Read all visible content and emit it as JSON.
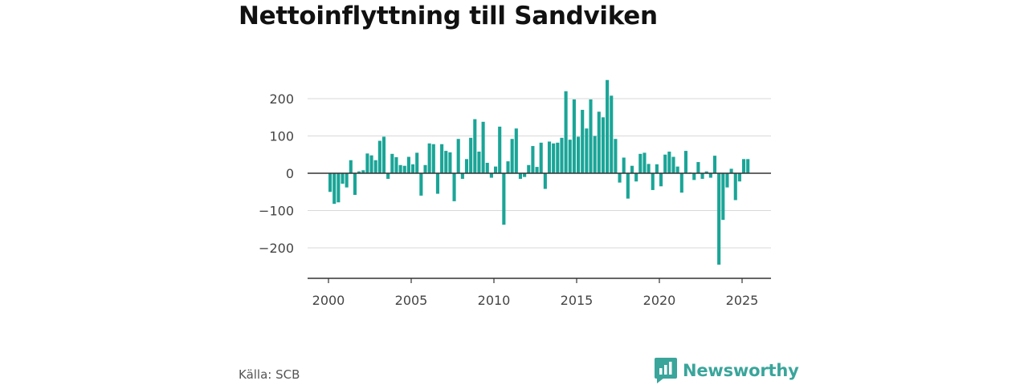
{
  "title": "Nettoinflyttning till Sandviken",
  "source": "Källa: SCB",
  "brand": {
    "name": "Newsworthy",
    "color": "#3aa59b"
  },
  "chart_data": {
    "type": "bar",
    "title": "Nettoinflyttning till Sandviken",
    "xlabel": "",
    "ylabel": "",
    "bar_color": "#1aa597",
    "grid": true,
    "ylim": [
      -280,
      250
    ],
    "yticks": [
      200,
      100,
      0,
      -100,
      -200
    ],
    "ytick_labels": [
      "200",
      "100",
      "0",
      "−100",
      "−200"
    ],
    "xlim": [
      1999.4,
      2026.0
    ],
    "xticks": [
      2000,
      2005,
      2010,
      2015,
      2020,
      2025
    ],
    "xtick_labels": [
      "2000",
      "2005",
      "2010",
      "2015",
      "2020",
      "2025"
    ],
    "series": [
      {
        "values": [
          {
            "x": 2000.1,
            "y": -50
          },
          {
            "x": 2000.35,
            "y": -82
          },
          {
            "x": 2000.6,
            "y": -78
          },
          {
            "x": 2000.85,
            "y": -28
          },
          {
            "x": 2001.1,
            "y": -38
          },
          {
            "x": 2001.35,
            "y": 35
          },
          {
            "x": 2001.6,
            "y": -58
          },
          {
            "x": 2001.85,
            "y": 5
          },
          {
            "x": 2002.1,
            "y": 8
          },
          {
            "x": 2002.35,
            "y": 53
          },
          {
            "x": 2002.6,
            "y": 48
          },
          {
            "x": 2002.85,
            "y": 35
          },
          {
            "x": 2003.1,
            "y": 87
          },
          {
            "x": 2003.35,
            "y": 98
          },
          {
            "x": 2003.6,
            "y": -15
          },
          {
            "x": 2003.85,
            "y": 52
          },
          {
            "x": 2004.1,
            "y": 43
          },
          {
            "x": 2004.35,
            "y": 22
          },
          {
            "x": 2004.6,
            "y": 20
          },
          {
            "x": 2004.85,
            "y": 44
          },
          {
            "x": 2005.1,
            "y": 24
          },
          {
            "x": 2005.35,
            "y": 55
          },
          {
            "x": 2005.6,
            "y": -60
          },
          {
            "x": 2005.85,
            "y": 22
          },
          {
            "x": 2006.1,
            "y": 80
          },
          {
            "x": 2006.35,
            "y": 78
          },
          {
            "x": 2006.6,
            "y": -55
          },
          {
            "x": 2006.85,
            "y": 78
          },
          {
            "x": 2007.1,
            "y": 60
          },
          {
            "x": 2007.35,
            "y": 56
          },
          {
            "x": 2007.6,
            "y": -75
          },
          {
            "x": 2007.85,
            "y": 92
          },
          {
            "x": 2008.1,
            "y": -15
          },
          {
            "x": 2008.35,
            "y": 38
          },
          {
            "x": 2008.6,
            "y": 95
          },
          {
            "x": 2008.85,
            "y": 145
          },
          {
            "x": 2009.1,
            "y": 58
          },
          {
            "x": 2009.35,
            "y": 138
          },
          {
            "x": 2009.6,
            "y": 28
          },
          {
            "x": 2009.85,
            "y": -12
          },
          {
            "x": 2010.1,
            "y": 18
          },
          {
            "x": 2010.35,
            "y": 125
          },
          {
            "x": 2010.6,
            "y": -138
          },
          {
            "x": 2010.85,
            "y": 32
          },
          {
            "x": 2011.1,
            "y": 92
          },
          {
            "x": 2011.35,
            "y": 120
          },
          {
            "x": 2011.6,
            "y": -15
          },
          {
            "x": 2011.85,
            "y": -10
          },
          {
            "x": 2012.1,
            "y": 22
          },
          {
            "x": 2012.35,
            "y": 73
          },
          {
            "x": 2012.6,
            "y": 17
          },
          {
            "x": 2012.85,
            "y": 82
          },
          {
            "x": 2013.1,
            "y": -42
          },
          {
            "x": 2013.35,
            "y": 85
          },
          {
            "x": 2013.6,
            "y": 80
          },
          {
            "x": 2013.85,
            "y": 82
          },
          {
            "x": 2014.1,
            "y": 95
          },
          {
            "x": 2014.35,
            "y": 220
          },
          {
            "x": 2014.6,
            "y": 90
          },
          {
            "x": 2014.85,
            "y": 198
          },
          {
            "x": 2015.1,
            "y": 98
          },
          {
            "x": 2015.35,
            "y": 170
          },
          {
            "x": 2015.6,
            "y": 120
          },
          {
            "x": 2015.85,
            "y": 198
          },
          {
            "x": 2016.1,
            "y": 100
          },
          {
            "x": 2016.35,
            "y": 165
          },
          {
            "x": 2016.6,
            "y": 150
          },
          {
            "x": 2016.85,
            "y": 250
          },
          {
            "x": 2017.1,
            "y": 208
          },
          {
            "x": 2017.35,
            "y": 92
          },
          {
            "x": 2017.6,
            "y": -25
          },
          {
            "x": 2017.85,
            "y": 42
          },
          {
            "x": 2018.1,
            "y": -68
          },
          {
            "x": 2018.35,
            "y": 20
          },
          {
            "x": 2018.6,
            "y": -22
          },
          {
            "x": 2018.85,
            "y": 52
          },
          {
            "x": 2019.1,
            "y": 55
          },
          {
            "x": 2019.35,
            "y": 25
          },
          {
            "x": 2019.6,
            "y": -45
          },
          {
            "x": 2019.85,
            "y": 24
          },
          {
            "x": 2020.1,
            "y": -35
          },
          {
            "x": 2020.35,
            "y": 50
          },
          {
            "x": 2020.6,
            "y": 58
          },
          {
            "x": 2020.85,
            "y": 44
          },
          {
            "x": 2021.1,
            "y": 18
          },
          {
            "x": 2021.35,
            "y": -52
          },
          {
            "x": 2021.6,
            "y": 60
          },
          {
            "x": 2021.85,
            "y": 2
          },
          {
            "x": 2022.1,
            "y": -18
          },
          {
            "x": 2022.35,
            "y": 30
          },
          {
            "x": 2022.6,
            "y": -15
          },
          {
            "x": 2022.85,
            "y": 5
          },
          {
            "x": 2023.1,
            "y": -12
          },
          {
            "x": 2023.35,
            "y": 47
          },
          {
            "x": 2023.6,
            "y": -245
          },
          {
            "x": 2023.85,
            "y": -125
          },
          {
            "x": 2024.1,
            "y": -38
          },
          {
            "x": 2024.35,
            "y": 12
          },
          {
            "x": 2024.6,
            "y": -72
          },
          {
            "x": 2024.85,
            "y": -22
          },
          {
            "x": 2025.1,
            "y": 38
          },
          {
            "x": 2025.35,
            "y": 38
          }
        ]
      }
    ]
  }
}
